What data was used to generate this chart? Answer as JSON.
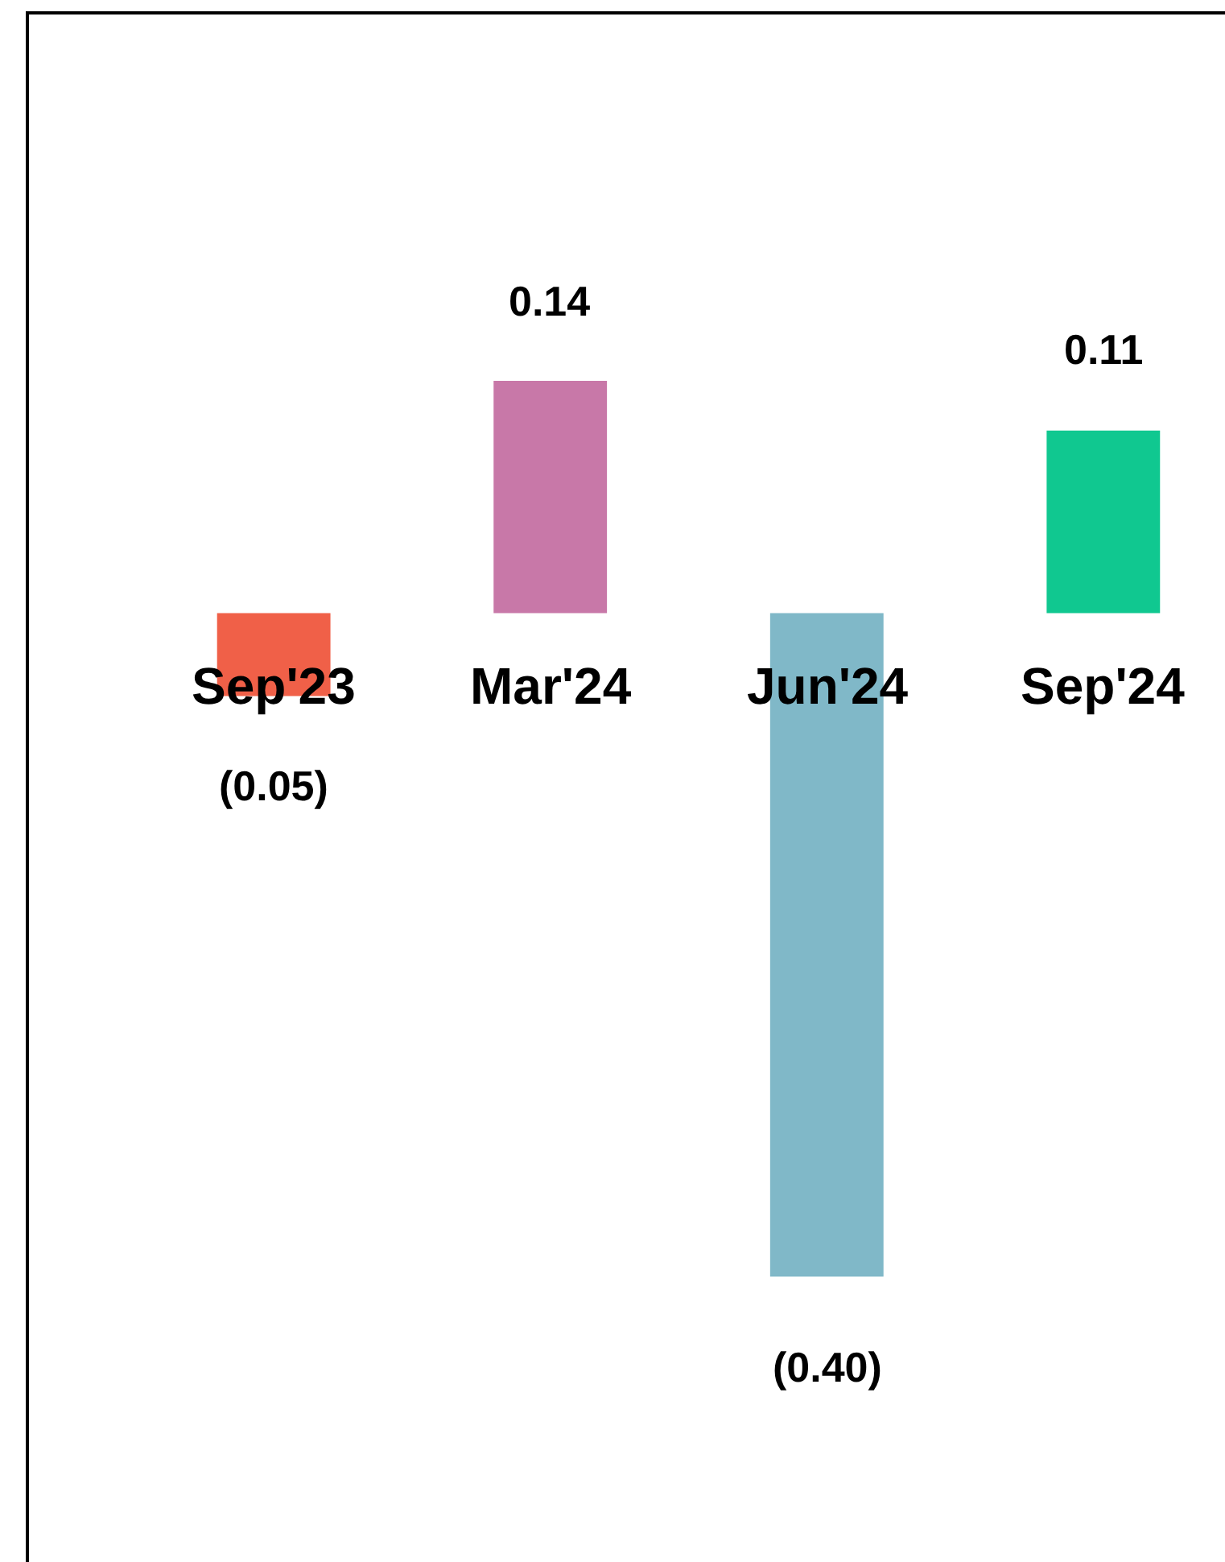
{
  "chart_data": {
    "type": "bar",
    "categories": [
      "Sep'23",
      "Mar'24",
      "Jun'24",
      "Sep'24"
    ],
    "values": [
      -0.05,
      0.14,
      -0.4,
      0.11
    ],
    "colors": [
      "#f06048",
      "#c878a8",
      "#80b8c8",
      "#10c890"
    ],
    "value_labels": [
      "(0.05)",
      "0.14",
      "(0.40)",
      "0.11"
    ]
  }
}
